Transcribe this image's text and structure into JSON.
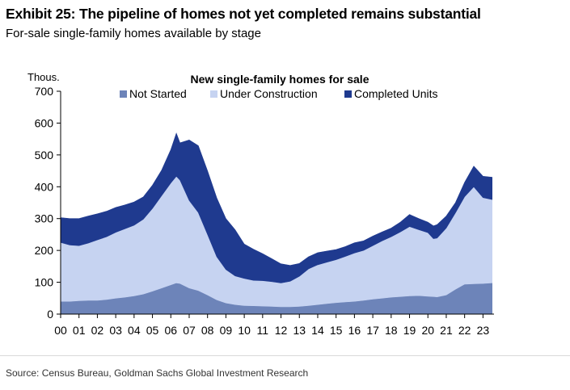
{
  "header": {
    "title": "Exhibit 25: The pipeline of homes not yet completed remains substantial",
    "subtitle": "For-sale single-family homes available by stage"
  },
  "footer": {
    "source": "Source: Census Bureau, Goldman Sachs Global Investment Research"
  },
  "chart_data": {
    "type": "area",
    "stacked": true,
    "title": "New single-family homes for sale",
    "ylabel": "Thous.",
    "ylim": [
      0,
      700
    ],
    "yticks": [
      0,
      100,
      200,
      300,
      400,
      500,
      600,
      700
    ],
    "xlim": [
      2000,
      2023.6
    ],
    "xticks": [
      2000,
      2001,
      2002,
      2003,
      2004,
      2005,
      2006,
      2007,
      2008,
      2009,
      2010,
      2011,
      2012,
      2013,
      2014,
      2015,
      2016,
      2017,
      2018,
      2019,
      2020,
      2021,
      2022,
      2023
    ],
    "xtick_labels": [
      "00",
      "01",
      "02",
      "03",
      "04",
      "05",
      "06",
      "07",
      "08",
      "09",
      "10",
      "11",
      "12",
      "13",
      "14",
      "15",
      "16",
      "17",
      "18",
      "19",
      "20",
      "21",
      "22",
      "23"
    ],
    "grid": false,
    "legend_position": "top",
    "x": [
      2000.0,
      2000.5,
      2001.0,
      2001.5,
      2002.0,
      2002.5,
      2003.0,
      2003.5,
      2004.0,
      2004.5,
      2005.0,
      2005.5,
      2006.0,
      2006.3,
      2006.5,
      2007.0,
      2007.5,
      2008.0,
      2008.5,
      2009.0,
      2009.5,
      2010.0,
      2010.5,
      2011.0,
      2011.5,
      2012.0,
      2012.5,
      2013.0,
      2013.5,
      2014.0,
      2014.5,
      2015.0,
      2015.5,
      2016.0,
      2016.5,
      2017.0,
      2017.5,
      2018.0,
      2018.5,
      2019.0,
      2019.5,
      2020.0,
      2020.3,
      2020.5,
      2021.0,
      2021.5,
      2022.0,
      2022.5,
      2023.0,
      2023.5
    ],
    "series": [
      {
        "name": "Not Started",
        "color": "#6d84b9",
        "values": [
          40,
          40,
          42,
          43,
          43,
          46,
          50,
          53,
          57,
          63,
          72,
          82,
          92,
          98,
          96,
          82,
          74,
          60,
          45,
          35,
          30,
          27,
          26,
          25,
          24,
          23,
          23,
          24,
          27,
          30,
          33,
          36,
          38,
          40,
          43,
          47,
          50,
          53,
          55,
          57,
          58,
          56,
          55,
          54,
          60,
          78,
          94,
          95,
          96,
          98
        ]
      },
      {
        "name": "Under Construction",
        "color": "#c6d3f1",
        "values": [
          185,
          177,
          173,
          180,
          190,
          197,
          207,
          215,
          222,
          235,
          260,
          290,
          320,
          335,
          325,
          275,
          245,
          190,
          135,
          105,
          90,
          85,
          80,
          80,
          78,
          75,
          80,
          95,
          115,
          125,
          130,
          135,
          143,
          152,
          157,
          168,
          180,
          190,
          203,
          218,
          207,
          200,
          182,
          185,
          210,
          240,
          275,
          305,
          270,
          262
        ]
      },
      {
        "name": "Completed Units",
        "color": "#1f3a8f",
        "values": [
          78,
          83,
          85,
          85,
          82,
          80,
          78,
          75,
          73,
          70,
          73,
          80,
          105,
          135,
          117,
          190,
          210,
          200,
          185,
          160,
          145,
          108,
          98,
          85,
          72,
          60,
          50,
          40,
          38,
          38,
          35,
          32,
          31,
          32,
          30,
          30,
          28,
          27,
          31,
          38,
          35,
          33,
          40,
          42,
          38,
          32,
          45,
          65,
          67,
          70
        ]
      }
    ]
  }
}
